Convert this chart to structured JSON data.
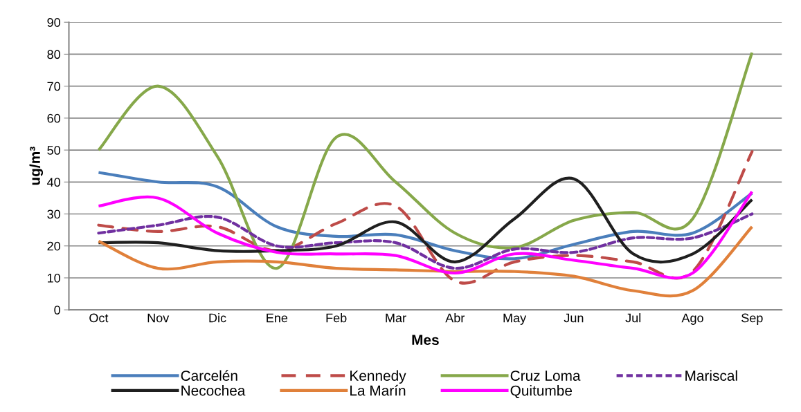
{
  "chart_data": {
    "type": "line",
    "xlabel": "Mes",
    "ylabel": "ug/m³",
    "categories": [
      "Oct",
      "Nov",
      "Dic",
      "Ene",
      "Feb",
      "Mar",
      "Abr",
      "May",
      "Jun",
      "Jul",
      "Ago",
      "Sep"
    ],
    "series": [
      {
        "name": "Carcelén",
        "color": "#4a7ebb",
        "line_style": "solid",
        "values": [
          43,
          40,
          38.5,
          26,
          23,
          23.5,
          18.5,
          16,
          20.5,
          24.5,
          24,
          36.5
        ]
      },
      {
        "name": "Kennedy",
        "color": "#be4b48",
        "line_style": "dashed",
        "values": [
          26.5,
          24.5,
          26,
          18.5,
          27,
          32.5,
          9,
          15,
          17,
          15,
          12,
          49.5
        ]
      },
      {
        "name": "Cruz Loma",
        "color": "#86a84a",
        "line_style": "solid",
        "values": [
          50,
          70,
          48,
          13,
          54,
          40,
          24,
          19.5,
          28,
          30.5,
          28.5,
          80.5
        ]
      },
      {
        "name": "Mariscal",
        "color": "#7030a0",
        "line_style": "dotted",
        "values": [
          24,
          26.5,
          29,
          20,
          21,
          21,
          13,
          19,
          18,
          22.5,
          22.5,
          30
        ]
      },
      {
        "name": "Necochea",
        "color": "#1f1f1f",
        "line_style": "solid",
        "values": [
          21,
          21,
          18.5,
          18.5,
          20,
          27.5,
          15,
          28.5,
          41,
          17.5,
          17.5,
          34.5
        ]
      },
      {
        "name": "La Marín",
        "color": "#e0803a",
        "line_style": "solid",
        "values": [
          21.5,
          13,
          15,
          15,
          13,
          12.5,
          12,
          12,
          10.5,
          6,
          6,
          26
        ]
      },
      {
        "name": "Quitumbe",
        "color": "#ff00ff",
        "line_style": "solid",
        "values": [
          32.5,
          35,
          24,
          18,
          17.5,
          17,
          11.5,
          17.5,
          15.5,
          13,
          11.5,
          37
        ]
      }
    ],
    "ylim": [
      0,
      90
    ],
    "yticks": [
      0,
      10,
      20,
      30,
      40,
      50,
      60,
      70,
      80,
      90
    ],
    "grid": "y",
    "legend": "bottom",
    "marker": "none"
  }
}
